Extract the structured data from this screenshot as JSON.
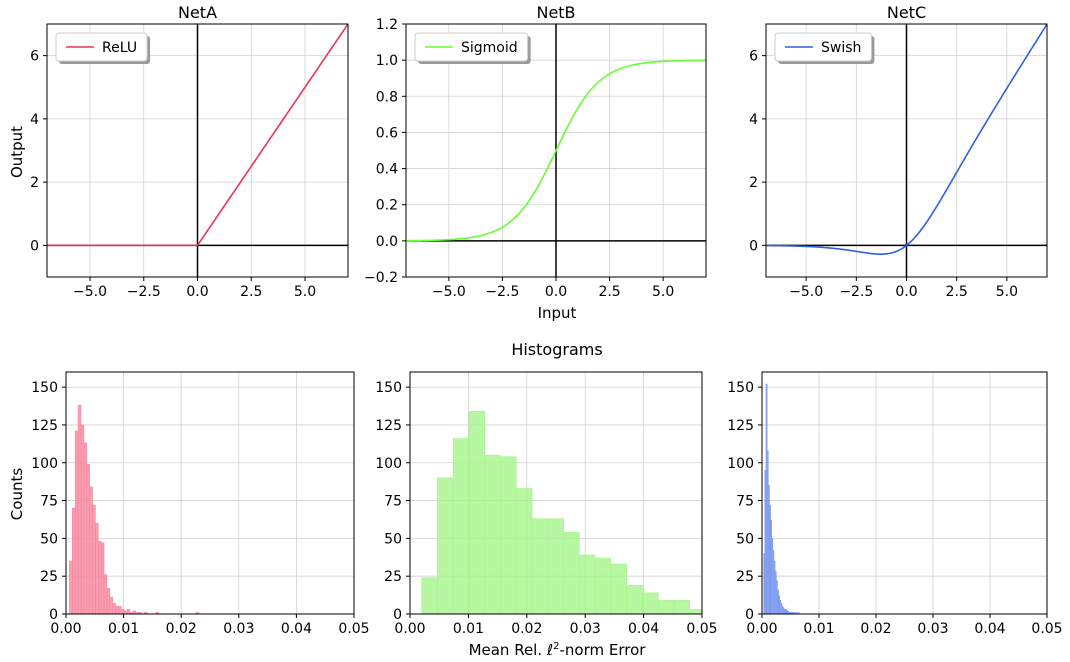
{
  "figure": {
    "histograms_title": "Histograms",
    "shared_xlabel_top": "Input",
    "shared_ylabel_top": "Output",
    "shared_xlabel_bottom_prefix": "Mean Rel. ",
    "shared_xlabel_bottom_symbol": "ℓ",
    "shared_xlabel_bottom_sup": "2",
    "shared_xlabel_bottom_suffix": "-norm Error",
    "shared_ylabel_bottom": "Counts"
  },
  "chart_data": [
    {
      "id": "netA_activation",
      "type": "line",
      "title": "NetA",
      "xlabel": "",
      "ylabel": "Output",
      "xlim": [
        -7,
        7
      ],
      "ylim": [
        -1,
        7
      ],
      "xticks": [
        -5.0,
        -2.5,
        0.0,
        2.5,
        5.0
      ],
      "xtick_labels": [
        "−5.0",
        "−2.5",
        "0.0",
        "2.5",
        "5.0"
      ],
      "yticks": [
        0,
        2,
        4,
        6
      ],
      "ytick_labels": [
        "0",
        "2",
        "4",
        "6"
      ],
      "grid": true,
      "legend": "top-left",
      "series": [
        {
          "name": "ReLU",
          "color": "#f0325a",
          "function": "relu"
        }
      ]
    },
    {
      "id": "netB_activation",
      "type": "line",
      "title": "NetB",
      "xlabel": "Input",
      "ylabel": "",
      "xlim": [
        -7,
        7
      ],
      "ylim": [
        -0.2,
        1.2
      ],
      "xticks": [
        -5.0,
        -2.5,
        0.0,
        2.5,
        5.0
      ],
      "xtick_labels": [
        "−5.0",
        "−2.5",
        "0.0",
        "2.5",
        "5.0"
      ],
      "yticks": [
        -0.2,
        0.0,
        0.2,
        0.4,
        0.6,
        0.8,
        1.0,
        1.2
      ],
      "ytick_labels": [
        "−0.2",
        "0.0",
        "0.2",
        "0.4",
        "0.6",
        "0.8",
        "1.0",
        "1.2"
      ],
      "grid": true,
      "legend": "top-left",
      "series": [
        {
          "name": "Sigmoid",
          "color": "#66ff33",
          "function": "sigmoid"
        }
      ]
    },
    {
      "id": "netC_activation",
      "type": "line",
      "title": "NetC",
      "xlabel": "",
      "ylabel": "",
      "xlim": [
        -7,
        7
      ],
      "ylim": [
        -1,
        7
      ],
      "xticks": [
        -5.0,
        -2.5,
        0.0,
        2.5,
        5.0
      ],
      "xtick_labels": [
        "−5.0",
        "−2.5",
        "0.0",
        "2.5",
        "5.0"
      ],
      "yticks": [
        0,
        2,
        4,
        6
      ],
      "ytick_labels": [
        "0",
        "2",
        "4",
        "6"
      ],
      "grid": true,
      "legend": "top-left",
      "series": [
        {
          "name": "Swish",
          "color": "#2f5fe8",
          "function": "swish"
        }
      ]
    },
    {
      "id": "netA_histogram",
      "type": "bar",
      "title": "",
      "xlabel": "",
      "ylabel": "Counts",
      "xlim": [
        0,
        0.05
      ],
      "ylim": [
        0,
        160
      ],
      "xticks": [
        0.0,
        0.01,
        0.02,
        0.03,
        0.04,
        0.05
      ],
      "xtick_labels": [
        "0.00",
        "0.01",
        "0.02",
        "0.03",
        "0.04",
        "0.05"
      ],
      "yticks": [
        0,
        25,
        50,
        75,
        100,
        125,
        150
      ],
      "ytick_labels": [
        "0",
        "25",
        "50",
        "75",
        "100",
        "125",
        "150"
      ],
      "grid": true,
      "color": "#f7869e",
      "bin_start": 0.0006,
      "bin_width": 0.0005,
      "counts": [
        35,
        70,
        121,
        138,
        125,
        113,
        99,
        84,
        72,
        60,
        48,
        47,
        26,
        17,
        11,
        7,
        5,
        5,
        3,
        2,
        3,
        1,
        2,
        1,
        1,
        0,
        1,
        0,
        0,
        0,
        1,
        0,
        0,
        0,
        0,
        0,
        0,
        0,
        0,
        0,
        0,
        0,
        0,
        0,
        1
      ]
    },
    {
      "id": "netB_histogram",
      "type": "bar",
      "title": "",
      "xlabel": "",
      "ylabel": "",
      "xlim": [
        0,
        0.05
      ],
      "ylim": [
        0,
        160
      ],
      "xticks": [
        0.0,
        0.01,
        0.02,
        0.03,
        0.04,
        0.05
      ],
      "xtick_labels": [
        "0.00",
        "0.01",
        "0.02",
        "0.03",
        "0.04",
        "0.05"
      ],
      "yticks": [
        0,
        25,
        50,
        75,
        100,
        125,
        150
      ],
      "ytick_labels": [
        "0",
        "25",
        "50",
        "75",
        "100",
        "125",
        "150"
      ],
      "grid": true,
      "color": "#a5f58a",
      "bin_start": 0.002,
      "bin_width": 0.0027,
      "counts": [
        24,
        90,
        116,
        134,
        105,
        104,
        83,
        63,
        63,
        54,
        39,
        37,
        33,
        19,
        14,
        9,
        9,
        3,
        10
      ]
    },
    {
      "id": "netC_histogram",
      "type": "bar",
      "title": "",
      "xlabel": "",
      "ylabel": "",
      "xlim": [
        0,
        0.05
      ],
      "ylim": [
        0,
        160
      ],
      "xticks": [
        0.0,
        0.01,
        0.02,
        0.03,
        0.04,
        0.05
      ],
      "xtick_labels": [
        "0.00",
        "0.01",
        "0.02",
        "0.03",
        "0.04",
        "0.05"
      ],
      "yticks": [
        0,
        25,
        50,
        75,
        100,
        125,
        150
      ],
      "ytick_labels": [
        "0",
        "25",
        "50",
        "75",
        "100",
        "125",
        "150"
      ],
      "grid": true,
      "color": "#7a99ee",
      "bin_start": 0.0003,
      "bin_width": 0.0002,
      "counts": [
        40,
        95,
        152,
        108,
        85,
        72,
        62,
        50,
        42,
        35,
        28,
        22,
        16,
        12,
        9,
        7,
        5,
        4,
        3,
        3,
        2,
        2,
        1,
        1,
        1,
        1,
        1,
        0,
        1,
        0,
        1
      ]
    }
  ]
}
